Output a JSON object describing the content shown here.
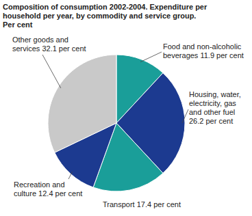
{
  "chart_data": {
    "type": "pie",
    "title": "Composition of consumption 2002-2004. Expenditure per household per year, by commodity and service group. Per cent",
    "categories": [
      "Food and non-alcoholic beverages",
      "Housing, water, electricity, gas and other fuel",
      "Transport",
      "Recreation and culture",
      "Other goods and services"
    ],
    "values": [
      11.9,
      26.2,
      17.4,
      12.4,
      32.1
    ],
    "value_labels": [
      "11.9 per cent",
      "26.2 per cent",
      "17.4 per cent",
      "12.4 per cent",
      "32.1 per cent"
    ],
    "colors": [
      "#1a9e99",
      "#1c3a90",
      "#1a9e99",
      "#1c3a90",
      "#c9c9c9"
    ],
    "data_labels": true
  }
}
